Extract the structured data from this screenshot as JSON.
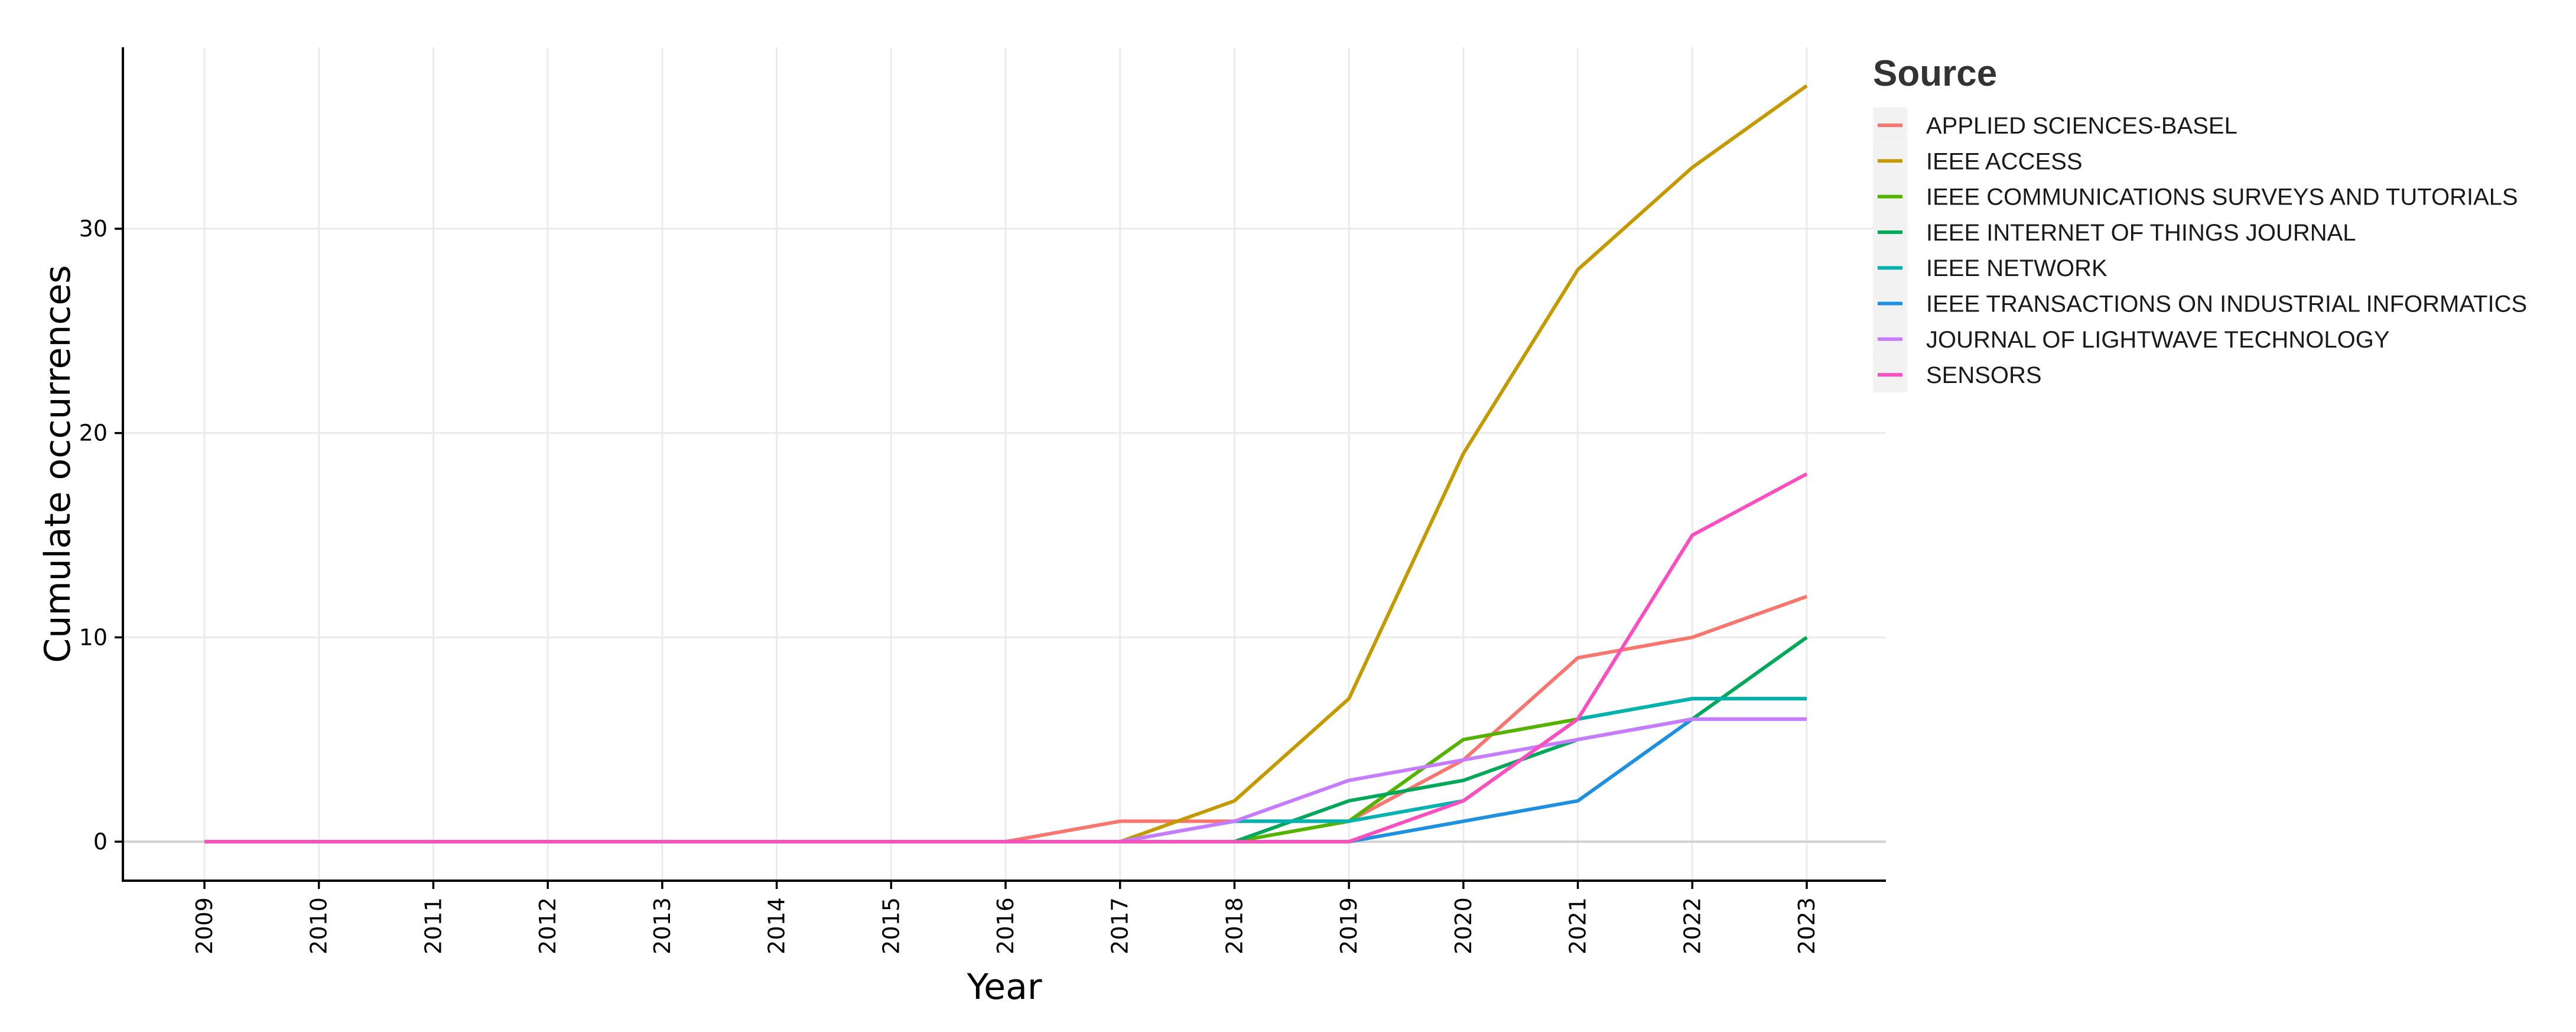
{
  "chart_data": {
    "type": "line",
    "title": "",
    "xlabel": "Year",
    "ylabel": "Cumulate occurrences",
    "x": [
      2009,
      2010,
      2011,
      2012,
      2013,
      2014,
      2015,
      2016,
      2017,
      2018,
      2019,
      2020,
      2021,
      2022,
      2023
    ],
    "xtick_labels": [
      "2009",
      "2010",
      "2011",
      "2012",
      "2013",
      "2014",
      "2015",
      "2016",
      "2017",
      "2018",
      "2019",
      "2020",
      "2021",
      "2022",
      "2023"
    ],
    "ylim": [
      -2,
      38.9
    ],
    "yticks": [
      0,
      10,
      20,
      30
    ],
    "ytick_labels": [
      "0",
      "10",
      "20",
      "30"
    ],
    "grid": true,
    "legend": {
      "title": "Source",
      "position": "right"
    },
    "series": [
      {
        "name": "APPLIED SCIENCES-BASEL",
        "color": "#F8766D",
        "values": [
          0,
          0,
          0,
          0,
          0,
          0,
          0,
          0,
          1,
          1,
          1,
          4,
          9,
          10,
          12
        ]
      },
      {
        "name": "IEEE ACCESS",
        "color": "#C49A00",
        "values": [
          0,
          0,
          0,
          0,
          0,
          0,
          0,
          0,
          0,
          2,
          7,
          19,
          28,
          33,
          37
        ]
      },
      {
        "name": "IEEE COMMUNICATIONS SURVEYS AND TUTORIALS",
        "color": "#53B400",
        "values": [
          0,
          0,
          0,
          0,
          0,
          0,
          0,
          0,
          0,
          0,
          1,
          5,
          6,
          7,
          7
        ]
      },
      {
        "name": "IEEE INTERNET OF THINGS JOURNAL",
        "color": "#00C094",
        "values": [
          0,
          0,
          0,
          0,
          0,
          0,
          0,
          0,
          0,
          0,
          2,
          3,
          5,
          6,
          10
        ]
      },
      {
        "name": "IEEE NETWORK",
        "color": "#00B6EB",
        "values": [
          0,
          0,
          0,
          0,
          0,
          0,
          0,
          0,
          0,
          1,
          1,
          2,
          6,
          7,
          7
        ]
      },
      {
        "name": "IEEE TRANSACTIONS ON INDUSTRIAL INFORMATICS",
        "color": "#06A4FF",
        "values": [
          0,
          0,
          0,
          0,
          0,
          0,
          0,
          0,
          0,
          0,
          0,
          1,
          2,
          6,
          6
        ]
      },
      {
        "name": "JOURNAL OF LIGHTWAVE TECHNOLOGY",
        "color": "#A58AFF",
        "values": [
          0,
          0,
          0,
          0,
          0,
          0,
          0,
          0,
          0,
          1,
          3,
          4,
          5,
          6,
          6
        ]
      },
      {
        "name": "SENSORS",
        "color": "#FB61D7",
        "values": [
          0,
          0,
          0,
          0,
          0,
          0,
          0,
          0,
          0,
          0,
          0,
          2,
          6,
          15,
          18
        ]
      }
    ],
    "render_colors": [
      "#F8766D",
      "#C49A00",
      "#53B400",
      "#00A85A",
      "#00B3B0",
      "#1E90E0",
      "#C77CFF",
      "#FB4FC0"
    ]
  }
}
